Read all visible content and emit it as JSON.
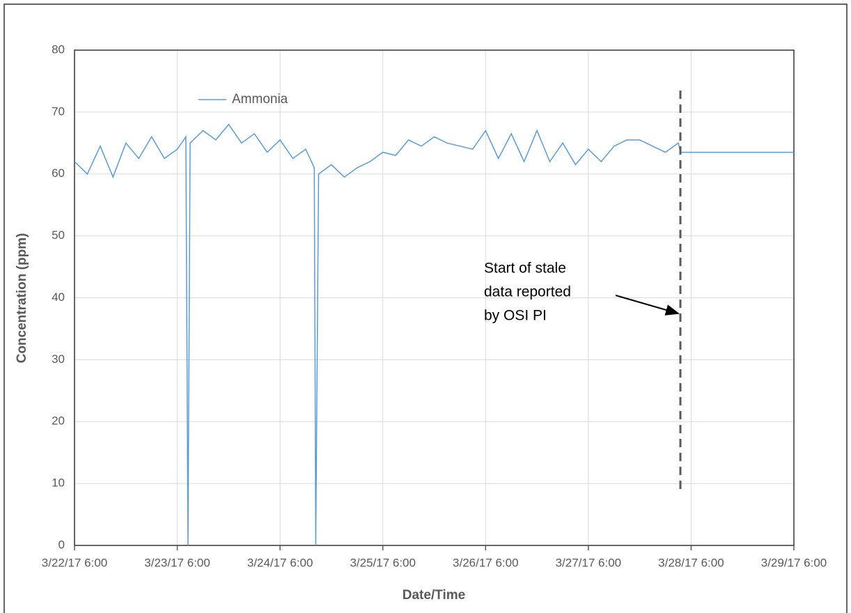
{
  "chart_data": {
    "type": "line",
    "x_label": "Date/Time",
    "y_label": "Concentration (ppm)",
    "ylim": [
      0,
      80
    ],
    "yticks": [
      0,
      10,
      20,
      30,
      40,
      50,
      60,
      70,
      80
    ],
    "xlim": [
      "2017-03-22T06:00",
      "2017-03-29T06:00"
    ],
    "xticks": [
      {
        "value": "2017-03-22T06:00",
        "label": "3/22/17 6:00"
      },
      {
        "value": "2017-03-23T06:00",
        "label": "3/23/17 6:00"
      },
      {
        "value": "2017-03-24T06:00",
        "label": "3/24/17 6:00"
      },
      {
        "value": "2017-03-25T06:00",
        "label": "3/25/17 6:00"
      },
      {
        "value": "2017-03-26T06:00",
        "label": "3/26/17 6:00"
      },
      {
        "value": "2017-03-27T06:00",
        "label": "3/27/17 6:00"
      },
      {
        "value": "2017-03-28T06:00",
        "label": "3/28/17 6:00"
      },
      {
        "value": "2017-03-29T06:00",
        "label": "3/29/17 6:00"
      }
    ],
    "grid": true,
    "legend": "upper left",
    "annotation": [
      "Start of stale",
      "data reported",
      "by OSI PI"
    ],
    "x": [
      "2017-03-22T06:00",
      "2017-03-22T09:00",
      "2017-03-22T12:00",
      "2017-03-22T15:00",
      "2017-03-22T18:00",
      "2017-03-22T21:00",
      "2017-03-23T00:00",
      "2017-03-23T03:00",
      "2017-03-23T06:00",
      "2017-03-23T08:00",
      "2017-03-23T08:30",
      "2017-03-23T09:00",
      "2017-03-23T12:00",
      "2017-03-23T15:00",
      "2017-03-23T18:00",
      "2017-03-23T21:00",
      "2017-03-24T00:00",
      "2017-03-24T03:00",
      "2017-03-24T06:00",
      "2017-03-24T09:00",
      "2017-03-24T12:00",
      "2017-03-24T14:00",
      "2017-03-24T14:20",
      "2017-03-24T15:00",
      "2017-03-24T18:00",
      "2017-03-24T21:00",
      "2017-03-25T00:00",
      "2017-03-25T03:00",
      "2017-03-25T06:00",
      "2017-03-25T09:00",
      "2017-03-25T12:00",
      "2017-03-25T15:00",
      "2017-03-25T18:00",
      "2017-03-25T21:00",
      "2017-03-26T00:00",
      "2017-03-26T03:00",
      "2017-03-26T06:00",
      "2017-03-26T09:00",
      "2017-03-26T12:00",
      "2017-03-26T15:00",
      "2017-03-26T18:00",
      "2017-03-26T21:00",
      "2017-03-27T00:00",
      "2017-03-27T03:00",
      "2017-03-27T06:00",
      "2017-03-27T09:00",
      "2017-03-27T12:00",
      "2017-03-27T15:00",
      "2017-03-27T18:00",
      "2017-03-27T21:00",
      "2017-03-28T00:00",
      "2017-03-28T03:00",
      "2017-03-28T03:30",
      "2017-03-29T06:00"
    ],
    "series": [
      {
        "name": "Ammonia",
        "color": "#5b9bd5",
        "values": [
          62,
          60,
          64.5,
          59.5,
          65,
          62.5,
          66,
          62.5,
          64,
          66,
          0,
          65,
          67,
          65.5,
          68,
          65,
          66.5,
          63.5,
          65.5,
          62.5,
          64,
          61,
          0,
          60,
          61.5,
          59.5,
          61,
          62,
          63.5,
          63,
          65.5,
          64.5,
          66,
          65,
          64.5,
          64,
          67,
          62.5,
          66.5,
          62,
          67,
          62,
          65,
          61.5,
          64,
          62,
          64.5,
          65.5,
          65.5,
          64.5,
          63.5,
          65,
          63.5,
          63.5
        ]
      }
    ]
  }
}
